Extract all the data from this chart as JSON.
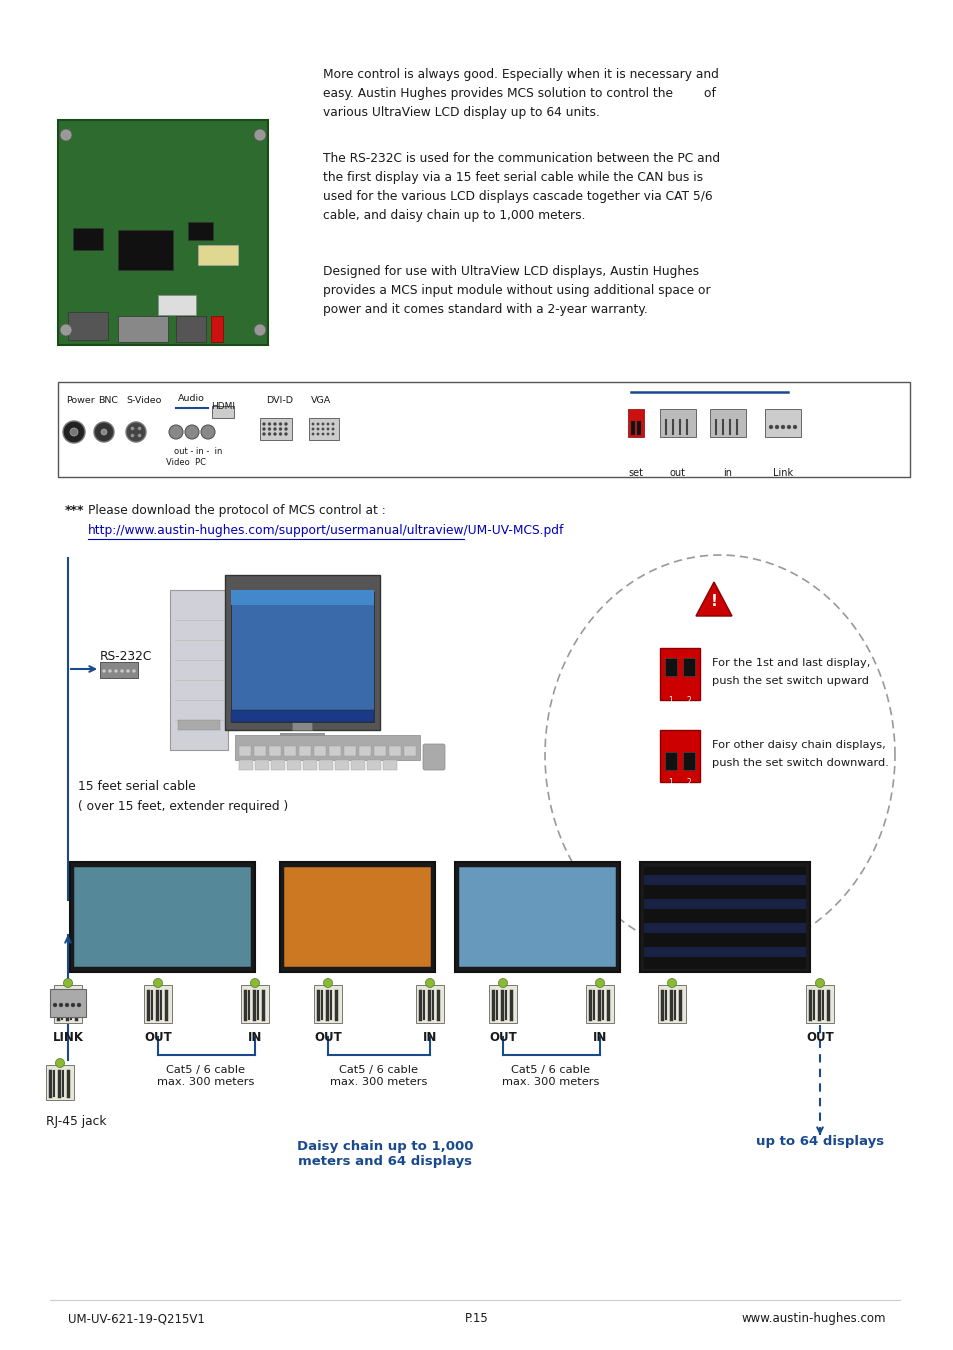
{
  "bg_color": "#ffffff",
  "text_color": "#1a1a1a",
  "blue_color": "#1a4a8e",
  "red_color": "#cc0000",
  "link_color": "#0000bb",
  "para1_line1": "More control is always good. Especially when it is necessary and",
  "para1_line2": "easy. Austin Hughes provides MCS solution to control the        of",
  "para1_line3": "various UltraView LCD display up to 64 units.",
  "para2_line1": "The RS-232C is used for the communication between the PC and",
  "para2_line2": "the first display via a 15 feet serial cable while the CAN bus is",
  "para2_line3": "used for the various LCD displays cascade together via CAT 5/6",
  "para2_line4": "cable, and daisy chain up to 1,000 meters.",
  "para3_line1": "Designed for use with UltraView LCD displays, Austin Hughes",
  "para3_line2": "provides a MCS input module without using additional space or",
  "para3_line3": "power and it comes standard with a 2-year warranty.",
  "note1": "***  Please download the protocol of MCS control at :",
  "note2": "http://www.austin-hughes.com/support/usermanual/ultraview/UM-UV-MCS.pdf",
  "rs232c": "RS-232C",
  "cable1": "15 feet serial cable",
  "cable2": "( over 15 feet, extender required )",
  "sw1_text": "For the 1st and last display,\npush the set switch upward",
  "sw2_text": "For other daisy chain displays,\npush the set switch downward.",
  "cat5": "Cat5 / 6 cable\nmax. 300 meters",
  "daisy": "Daisy chain up to 1,000\nmeters and 64 displays",
  "displays64": "up to 64 displays",
  "rj45": "RJ-45 jack",
  "foot_l": "UM-UV-621-19-Q215V1",
  "foot_m": "P.15",
  "foot_r": "www.austin-hughes.com"
}
